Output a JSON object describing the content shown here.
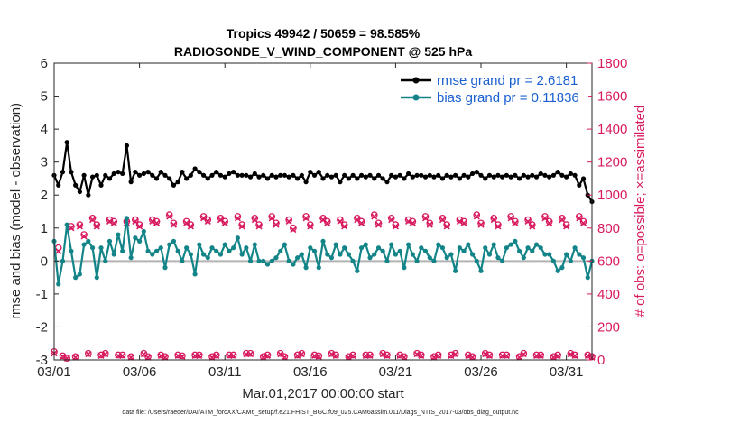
{
  "chart_data": {
    "type": "line",
    "title_line1": "Tropics 49942 / 50659 = 98.585%",
    "title_line2": "RADIOSONDE_V_WIND_COMPONENT @ 525 hPa",
    "xlabel": "Mar.01,2017 00:00:00 start",
    "ylabel_left": "rmse and bias (model - observation)",
    "ylabel_right": "# of obs: o=possible; ×=assimilated",
    "xlim": [
      0,
      31.5
    ],
    "ylim_left": [
      -3,
      6
    ],
    "ylim_right": [
      0,
      1800
    ],
    "x_ticks": [
      0,
      5,
      10,
      15,
      20,
      25,
      30
    ],
    "x_tick_labels": [
      "03/01",
      "03/06",
      "03/11",
      "03/16",
      "03/21",
      "03/26",
      "03/31"
    ],
    "y_left_ticks": [
      -3,
      -2,
      -1,
      0,
      1,
      2,
      3,
      4,
      5,
      6
    ],
    "y_left_tick_labels": [
      "-3",
      "-2",
      "-1",
      "0",
      "1",
      "2",
      "3",
      "4",
      "5",
      "6"
    ],
    "y_right_ticks": [
      0,
      200,
      400,
      600,
      800,
      1000,
      1200,
      1400,
      1600,
      1800
    ],
    "y_right_tick_labels": [
      "0",
      "200",
      "400",
      "600",
      "800",
      "1000",
      "1200",
      "1400",
      "1600",
      "1800"
    ],
    "grid": false,
    "legend_position": "top-right",
    "series": [
      {
        "name": "rmse grand pr = 2.6181",
        "axis": "left",
        "color": "#000000",
        "x_step": 0.25,
        "values": [
          2.6,
          2.3,
          2.7,
          3.6,
          2.7,
          2.3,
          2.1,
          2.6,
          2.0,
          2.55,
          2.6,
          2.3,
          2.6,
          2.5,
          2.65,
          2.7,
          2.65,
          3.5,
          2.4,
          2.7,
          2.6,
          2.65,
          2.7,
          2.6,
          2.5,
          2.7,
          2.6,
          2.5,
          2.3,
          2.4,
          2.7,
          2.5,
          2.6,
          2.8,
          2.7,
          2.6,
          2.5,
          2.6,
          2.7,
          2.6,
          2.55,
          2.65,
          2.7,
          2.6,
          2.6,
          2.6,
          2.55,
          2.65,
          2.55,
          2.6,
          2.5,
          2.6,
          2.55,
          2.6,
          2.6,
          2.55,
          2.6,
          2.5,
          2.6,
          2.4,
          2.7,
          2.6,
          2.7,
          2.5,
          2.6,
          2.55,
          2.6,
          2.4,
          2.6,
          2.5,
          2.6,
          2.5,
          2.6,
          2.55,
          2.6,
          2.5,
          2.6,
          2.5,
          2.4,
          2.6,
          2.55,
          2.6,
          2.5,
          2.65,
          2.55,
          2.6,
          2.6,
          2.55,
          2.6,
          2.55,
          2.6,
          2.5,
          2.6,
          2.55,
          2.6,
          2.5,
          2.6,
          2.55,
          2.65,
          2.7,
          2.6,
          2.5,
          2.6,
          2.55,
          2.6,
          2.55,
          2.6,
          2.55,
          2.6,
          2.5,
          2.6,
          2.55,
          2.6,
          2.55,
          2.65,
          2.6,
          2.55,
          2.6,
          2.7,
          2.6,
          2.55,
          2.65,
          2.6,
          2.3,
          2.5,
          2.0,
          1.8
        ]
      },
      {
        "name": "bias grand pr = 0.11836",
        "axis": "left",
        "color": "#138488",
        "x_step": 0.25,
        "values": [
          0.6,
          -0.7,
          0.0,
          1.1,
          0.3,
          -0.5,
          -0.4,
          0.5,
          0.6,
          0.4,
          -0.5,
          0.4,
          0.0,
          0.6,
          0.2,
          0.8,
          0.3,
          1.3,
          0.1,
          0.7,
          0.6,
          0.9,
          0.3,
          0.2,
          0.3,
          0.4,
          -0.2,
          0.5,
          0.6,
          0.3,
          0.0,
          0.4,
          0.2,
          -0.4,
          0.5,
          0.2,
          0.1,
          0.4,
          0.3,
          0.2,
          0.5,
          0.3,
          0.4,
          0.7,
          0.2,
          0.4,
          0.0,
          0.5,
          0.0,
          0.0,
          -0.1,
          0.0,
          0.1,
          0.3,
          0.5,
          0.0,
          -0.1,
          0.1,
          0.2,
          -0.2,
          0.4,
          0.3,
          -0.2,
          0.6,
          0.2,
          0.1,
          0.5,
          0.2,
          0.4,
          0.2,
          0.0,
          -0.3,
          0.4,
          0.5,
          0.1,
          0.2,
          0.4,
          0.3,
          0.0,
          0.5,
          0.2,
          0.3,
          -0.2,
          0.5,
          0.2,
          0.0,
          0.4,
          0.3,
          0.1,
          0.0,
          0.5,
          0.4,
          0.1,
          0.2,
          -0.3,
          0.4,
          0.3,
          0.5,
          0.2,
          0.0,
          -0.3,
          0.4,
          0.2,
          0.5,
          0.1,
          0.0,
          0.4,
          0.5,
          0.6,
          0.3,
          0.1,
          0.4,
          0.3,
          0.5,
          0.4,
          0.2,
          0.2,
          0.0,
          -0.3,
          -0.2,
          0.2,
          0.0,
          0.4,
          0.2,
          0.1,
          -0.5,
          0.0,
          0.6
        ]
      },
      {
        "name": "obs possible",
        "axis": "right",
        "color": "#d81b60",
        "marker": "o",
        "x_step": 0.25,
        "values": [
          50,
          680,
          25,
          10,
          810,
          20,
          820,
          760,
          40,
          860,
          820,
          30,
          40,
          850,
          840,
          30,
          30,
          840,
          20,
          850,
          820,
          40,
          20,
          850,
          840,
          30,
          20,
          880,
          830,
          30,
          25,
          840,
          820,
          30,
          30,
          870,
          850,
          20,
          30,
          860,
          840,
          30,
          30,
          870,
          820,
          40,
          40,
          860,
          820,
          20,
          30,
          870,
          830,
          40,
          20,
          850,
          800,
          30,
          40,
          870,
          820,
          30,
          25,
          860,
          840,
          40,
          30,
          850,
          820,
          20,
          30,
          860,
          840,
          30,
          30,
          880,
          830,
          40,
          30,
          860,
          820,
          30,
          20,
          850,
          840,
          40,
          30,
          870,
          830,
          20,
          30,
          860,
          820,
          30,
          40,
          850,
          840,
          30,
          20,
          880,
          830,
          40,
          30,
          860,
          820,
          30,
          30,
          870,
          840,
          20,
          40,
          850,
          820,
          30,
          30,
          870,
          840,
          20,
          30,
          860,
          820,
          40,
          30,
          870,
          840,
          30,
          20,
          850,
          820
        ]
      },
      {
        "name": "obs assimilated",
        "axis": "right",
        "color": "#d81b60",
        "marker": "x",
        "x_step": 0.25,
        "values": [
          40,
          660,
          20,
          10,
          800,
          15,
          810,
          750,
          35,
          850,
          810,
          25,
          35,
          840,
          830,
          25,
          25,
          830,
          15,
          840,
          810,
          35,
          15,
          840,
          830,
          25,
          15,
          870,
          820,
          25,
          20,
          830,
          810,
          25,
          25,
          860,
          840,
          15,
          25,
          850,
          830,
          25,
          25,
          860,
          810,
          35,
          35,
          850,
          810,
          15,
          25,
          860,
          820,
          35,
          15,
          840,
          790,
          25,
          35,
          860,
          810,
          25,
          20,
          850,
          830,
          35,
          25,
          840,
          810,
          15,
          25,
          850,
          830,
          25,
          25,
          870,
          820,
          35,
          25,
          850,
          810,
          25,
          15,
          840,
          830,
          35,
          25,
          860,
          820,
          15,
          25,
          850,
          810,
          25,
          35,
          840,
          830,
          25,
          15,
          870,
          820,
          35,
          25,
          850,
          810,
          25,
          25,
          860,
          830,
          15,
          35,
          840,
          810,
          25,
          25,
          860,
          830,
          15,
          25,
          850,
          810,
          35,
          25,
          860,
          830,
          25,
          15,
          840,
          810
        ]
      }
    ]
  },
  "legend": {
    "rmse_label": "rmse grand pr = 2.6181",
    "bias_label": "bias grand pr = 0.11836"
  },
  "footer": {
    "note": "data file: /Users/raeder/DAI/ATM_forcXX/CAM6_setup/f.e21.FHIST_BGC.f09_025.CAM6assim.011/Diags_NTrS_2017-03/obs_diag_output.nc"
  }
}
